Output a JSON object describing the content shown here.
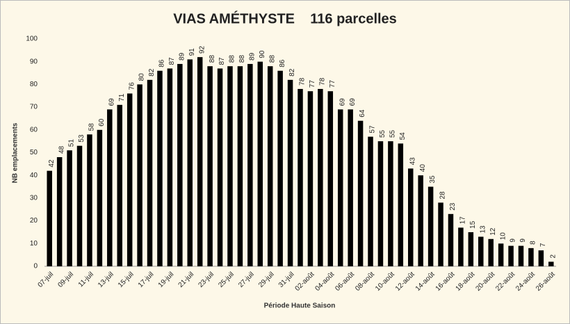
{
  "chart_data": {
    "type": "bar",
    "title": "VIAS AMÉTHYSTE    116 parcelles",
    "x_label": "Période Haute Saison",
    "y_label": "NB emplacements",
    "categories": [
      "07-juil",
      null,
      "09-juil",
      null,
      "11-juil",
      null,
      "13-juil",
      null,
      "15-juil",
      null,
      "17-juil",
      null,
      "19-juil",
      null,
      "21-juil",
      null,
      "23-juil",
      null,
      "25-juil",
      null,
      "27-juil",
      null,
      "29-juil",
      null,
      "31-juil",
      null,
      "02-août",
      null,
      "04-août",
      null,
      "06-août",
      null,
      "08-août",
      null,
      "10-août",
      null,
      "12-août",
      null,
      "14-août",
      null,
      "16-août",
      null,
      "18-août",
      null,
      "20-août",
      null,
      "22-août",
      null,
      "24-août",
      null,
      "26-août"
    ],
    "values": [
      42,
      48,
      51,
      53,
      58,
      60,
      69,
      71,
      76,
      80,
      82,
      86,
      87,
      89,
      91,
      92,
      88,
      87,
      88,
      88,
      89,
      90,
      88,
      86,
      82,
      78,
      77,
      78,
      77,
      69,
      69,
      64,
      57,
      55,
      55,
      54,
      43,
      40,
      35,
      28,
      23,
      17,
      15,
      13,
      12,
      10,
      9,
      9,
      8,
      7,
      2
    ],
    "color": "#000000",
    "ylim": [
      0,
      100
    ],
    "yticks": [
      0,
      10,
      20,
      30,
      40,
      50,
      60,
      70,
      80,
      90,
      100
    ],
    "grid": false
  }
}
